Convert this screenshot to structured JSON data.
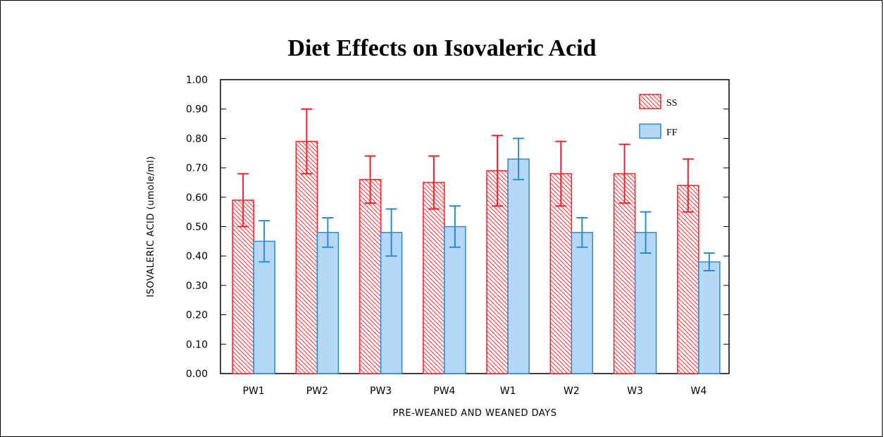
{
  "chart_data": {
    "type": "bar",
    "title": "Diet Effects on Isovaleric Acid",
    "xlabel": "PRE-WEANED AND WEANED DAYS",
    "ylabel": "ISOVALERIC ACID (umole/ml)",
    "ylim": [
      0,
      1.0
    ],
    "yticks": [
      "0.00",
      "0.10",
      "0.20",
      "0.30",
      "0.40",
      "0.50",
      "0.60",
      "0.70",
      "0.80",
      "0.90",
      "1.00"
    ],
    "categories": [
      "PW1",
      "PW2",
      "PW3",
      "PW4",
      "W1",
      "W2",
      "W3",
      "W4"
    ],
    "legend_position": "top-right",
    "grid": false,
    "series": [
      {
        "name": "SS",
        "color": "#e8242a",
        "fill": "hatched",
        "values": [
          0.59,
          0.79,
          0.66,
          0.65,
          0.69,
          0.68,
          0.68,
          0.64
        ],
        "error_low": [
          0.5,
          0.68,
          0.58,
          0.56,
          0.57,
          0.57,
          0.58,
          0.55
        ],
        "error_high": [
          0.68,
          0.9,
          0.74,
          0.74,
          0.81,
          0.79,
          0.78,
          0.73
        ]
      },
      {
        "name": "FF",
        "color": "#2a8ad6",
        "fill": "#b5d8f7",
        "values": [
          0.45,
          0.48,
          0.48,
          0.5,
          0.73,
          0.48,
          0.48,
          0.38
        ],
        "error_low": [
          0.38,
          0.43,
          0.4,
          0.43,
          0.66,
          0.43,
          0.41,
          0.35
        ],
        "error_high": [
          0.52,
          0.53,
          0.56,
          0.57,
          0.8,
          0.53,
          0.55,
          0.41
        ]
      }
    ]
  }
}
